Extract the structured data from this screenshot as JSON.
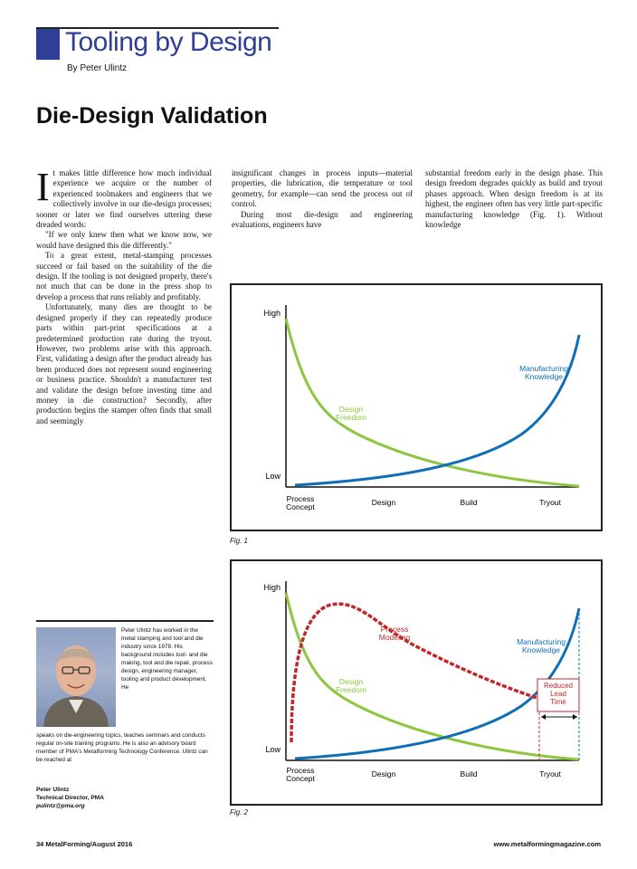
{
  "header": {
    "kicker": "Tooling by Design",
    "byline": "By Peter Ulintz",
    "headline": "Die-Design Validation"
  },
  "article": {
    "col1": [
      "t makes little difference how much individual experience we acquire or the number of experienced toolmakers and engineers that we collectively involve in our die-design processes; sooner or later we find ourselves uttering these dreaded words:",
      "\"If we only knew then what we know now, we would have designed this die differently.\"",
      "To a great extent, metal-stamping processes succeed or fail based on the suitability of the die design. If the tooling is not designed properly, there's not much that can be done in the press shop to develop a process that runs reliably and profitably.",
      "Unfortunately, many dies are thought to be designed properly if they can repeatedly produce parts within part-print specifications at a predetermined production rate during the tryout. However, two problems arise with this approach. First, validating a design after the product already has been produced does not represent sound engineering or business practice. Shouldn't a manufacturer test and validate the design before investing time and money in die construction? Secondly, after production begins the stamper often finds that small and seemingly"
    ],
    "dropcap": "I",
    "col2": [
      "insignificant changes in process inputs—material properties, die lubrication, die temperature or tool geometry, for example—can send the process out of control.",
      "During most die-design and engineering evaluations, engineers have"
    ],
    "col3": [
      "substantial freedom early in the design phase. This design freedom degrades quickly as build and tryout phases approach. When design freedom is at its highest, the engineer often has very little part-specific manufacturing knowledge (Fig. 1). Without knowledge"
    ]
  },
  "fig1": {
    "caption": "Fig. 1",
    "y_high": "High",
    "y_low": "Low",
    "x_ticks": [
      "Process\nConcept",
      "Design",
      "Build",
      "Tryout"
    ],
    "series_labels": [
      "Design\nFreedom",
      "Manufacturing\nKnowledge"
    ],
    "colors": {
      "design_freedom": "#8dc63f",
      "manufacturing_knowledge": "#0f6fb6"
    }
  },
  "fig2": {
    "caption": "Fig. 2",
    "y_high": "High",
    "y_low": "Low",
    "x_ticks": [
      "Process\nConcept",
      "Design",
      "Build",
      "Tryout"
    ],
    "series_labels": [
      "Process\nModeling",
      "Manufacturing\nKnowledge",
      "Design\nFreedom",
      "Reduced\nLead\nTime"
    ],
    "colors": {
      "process_modeling": "#c1272d",
      "design_freedom": "#8dc63f",
      "manufacturing_knowledge": "#0f6fb6"
    }
  },
  "bio": {
    "text1": "Peter Ulintz has worked in the metal stamping and tool and die industry since 1978. His background includes tool- and die making, tool and die repair, process design, engineering manager, tooling and product development. He",
    "text2": "speaks on die-engineering topics, teaches seminars and conducts regular on-site training programs. He is also an advisory board member of PMA's Metalforming Technology Conference. Ulintz can be reached at",
    "name": "Peter Ulintz",
    "title": "Technical Director, PMA",
    "email": "pulintz@pma.org"
  },
  "footer": {
    "left": "34    MetalForming/August 2016",
    "right": "www.metalformingmagazine.com"
  }
}
